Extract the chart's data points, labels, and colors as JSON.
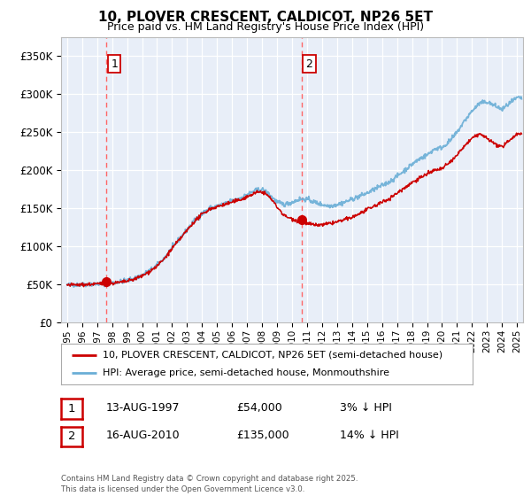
{
  "title": "10, PLOVER CRESCENT, CALDICOT, NP26 5ET",
  "subtitle": "Price paid vs. HM Land Registry's House Price Index (HPI)",
  "legend_line1": "10, PLOVER CRESCENT, CALDICOT, NP26 5ET (semi-detached house)",
  "legend_line2": "HPI: Average price, semi-detached house, Monmouthshire",
  "marker1_date": 1997.62,
  "marker1_price": 54000,
  "marker1_label": "1",
  "marker2_date": 2010.62,
  "marker2_price": 135000,
  "marker2_label": "2",
  "table_rows": [
    {
      "num": "1",
      "date": "13-AUG-1997",
      "price": "£54,000",
      "hpi": "3% ↓ HPI"
    },
    {
      "num": "2",
      "date": "16-AUG-2010",
      "price": "£135,000",
      "hpi": "14% ↓ HPI"
    }
  ],
  "footnote": "Contains HM Land Registry data © Crown copyright and database right 2025.\nThis data is licensed under the Open Government Licence v3.0.",
  "ylim": [
    0,
    375000
  ],
  "xlim": [
    1994.6,
    2025.4
  ],
  "yticks": [
    0,
    50000,
    100000,
    150000,
    200000,
    250000,
    300000,
    350000
  ],
  "ytick_labels": [
    "£0",
    "£50K",
    "£100K",
    "£150K",
    "£200K",
    "£250K",
    "£300K",
    "£350K"
  ],
  "xticks": [
    1995,
    1996,
    1997,
    1998,
    1999,
    2000,
    2001,
    2002,
    2003,
    2004,
    2005,
    2006,
    2007,
    2008,
    2009,
    2010,
    2011,
    2012,
    2013,
    2014,
    2015,
    2016,
    2017,
    2018,
    2019,
    2020,
    2021,
    2022,
    2023,
    2024,
    2025
  ],
  "plot_bg_color": "#e8eef8",
  "hpi_color": "#6aaed6",
  "price_color": "#cc0000",
  "vline_color": "#ff6666",
  "marker_color": "#cc0000",
  "hpi_anchors": [
    [
      1995.0,
      49000
    ],
    [
      1995.5,
      49500
    ],
    [
      1996.0,
      49800
    ],
    [
      1996.5,
      50200
    ],
    [
      1997.0,
      50500
    ],
    [
      1997.5,
      51000
    ],
    [
      1998.0,
      52000
    ],
    [
      1998.5,
      53500
    ],
    [
      1999.0,
      55000
    ],
    [
      1999.5,
      58000
    ],
    [
      2000.0,
      62000
    ],
    [
      2000.5,
      68000
    ],
    [
      2001.0,
      75000
    ],
    [
      2001.5,
      85000
    ],
    [
      2002.0,
      98000
    ],
    [
      2002.5,
      110000
    ],
    [
      2003.0,
      122000
    ],
    [
      2003.5,
      134000
    ],
    [
      2004.0,
      143000
    ],
    [
      2004.5,
      150000
    ],
    [
      2005.0,
      153000
    ],
    [
      2005.5,
      156000
    ],
    [
      2006.0,
      160000
    ],
    [
      2006.5,
      163000
    ],
    [
      2007.0,
      168000
    ],
    [
      2007.5,
      173000
    ],
    [
      2008.0,
      175000
    ],
    [
      2008.5,
      168000
    ],
    [
      2009.0,
      158000
    ],
    [
      2009.5,
      155000
    ],
    [
      2010.0,
      158000
    ],
    [
      2010.5,
      162000
    ],
    [
      2011.0,
      162000
    ],
    [
      2011.5,
      158000
    ],
    [
      2012.0,
      155000
    ],
    [
      2012.5,
      153000
    ],
    [
      2013.0,
      155000
    ],
    [
      2013.5,
      158000
    ],
    [
      2014.0,
      162000
    ],
    [
      2014.5,
      166000
    ],
    [
      2015.0,
      170000
    ],
    [
      2015.5,
      175000
    ],
    [
      2016.0,
      180000
    ],
    [
      2016.5,
      185000
    ],
    [
      2017.0,
      192000
    ],
    [
      2017.5,
      200000
    ],
    [
      2018.0,
      208000
    ],
    [
      2018.5,
      215000
    ],
    [
      2019.0,
      220000
    ],
    [
      2019.5,
      228000
    ],
    [
      2020.0,
      230000
    ],
    [
      2020.5,
      238000
    ],
    [
      2021.0,
      250000
    ],
    [
      2021.5,
      265000
    ],
    [
      2022.0,
      278000
    ],
    [
      2022.5,
      288000
    ],
    [
      2023.0,
      290000
    ],
    [
      2023.5,
      285000
    ],
    [
      2024.0,
      280000
    ],
    [
      2024.5,
      288000
    ],
    [
      2025.0,
      295000
    ]
  ],
  "price_anchors": [
    [
      1995.0,
      49000
    ],
    [
      1995.5,
      49200
    ],
    [
      1996.0,
      49500
    ],
    [
      1996.5,
      50000
    ],
    [
      1997.0,
      50500
    ],
    [
      1997.5,
      51000
    ],
    [
      1998.0,
      51500
    ],
    [
      1998.5,
      52500
    ],
    [
      1999.0,
      54000
    ],
    [
      1999.5,
      57000
    ],
    [
      2000.0,
      61000
    ],
    [
      2000.5,
      67000
    ],
    [
      2001.0,
      74000
    ],
    [
      2001.5,
      84000
    ],
    [
      2002.0,
      97000
    ],
    [
      2002.5,
      109000
    ],
    [
      2003.0,
      121000
    ],
    [
      2003.5,
      133000
    ],
    [
      2004.0,
      142000
    ],
    [
      2004.5,
      149000
    ],
    [
      2005.0,
      152000
    ],
    [
      2005.5,
      155000
    ],
    [
      2006.0,
      158000
    ],
    [
      2006.5,
      161000
    ],
    [
      2007.0,
      165000
    ],
    [
      2007.5,
      170000
    ],
    [
      2008.0,
      172000
    ],
    [
      2008.5,
      165000
    ],
    [
      2009.0,
      152000
    ],
    [
      2009.5,
      140000
    ],
    [
      2010.0,
      136000
    ],
    [
      2010.5,
      133000
    ],
    [
      2011.0,
      130000
    ],
    [
      2011.5,
      128000
    ],
    [
      2012.0,
      128000
    ],
    [
      2012.5,
      130000
    ],
    [
      2013.0,
      132000
    ],
    [
      2013.5,
      135000
    ],
    [
      2014.0,
      138000
    ],
    [
      2014.5,
      143000
    ],
    [
      2015.0,
      148000
    ],
    [
      2015.5,
      153000
    ],
    [
      2016.0,
      158000
    ],
    [
      2016.5,
      163000
    ],
    [
      2017.0,
      170000
    ],
    [
      2017.5,
      177000
    ],
    [
      2018.0,
      184000
    ],
    [
      2018.5,
      190000
    ],
    [
      2019.0,
      195000
    ],
    [
      2019.5,
      200000
    ],
    [
      2020.0,
      202000
    ],
    [
      2020.5,
      210000
    ],
    [
      2021.0,
      220000
    ],
    [
      2021.5,
      232000
    ],
    [
      2022.0,
      242000
    ],
    [
      2022.5,
      248000
    ],
    [
      2023.0,
      242000
    ],
    [
      2023.5,
      235000
    ],
    [
      2024.0,
      230000
    ],
    [
      2024.5,
      240000
    ],
    [
      2025.0,
      248000
    ]
  ]
}
